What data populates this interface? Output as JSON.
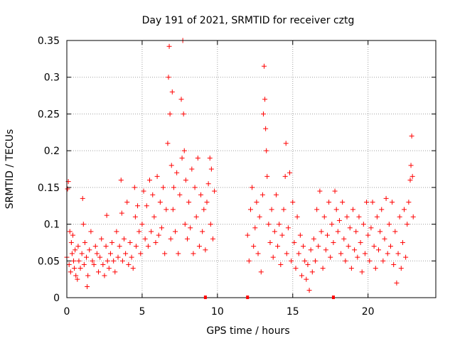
{
  "chart_data": {
    "type": "scatter",
    "title": "Day 191 of 2021, SRMTID for receiver cztg",
    "xlabel": "GPS time / hours",
    "ylabel": "SRMTID / TECUs",
    "xlim": [
      0,
      24.5
    ],
    "ylim": [
      0,
      0.35
    ],
    "grid": true,
    "marker": "+",
    "marker_color": "#ff0000",
    "x_ticks": [
      {
        "value": 0,
        "label": "0"
      },
      {
        "value": 5,
        "label": "5"
      },
      {
        "value": 10,
        "label": "10"
      },
      {
        "value": 15,
        "label": "15"
      },
      {
        "value": 20,
        "label": "20"
      }
    ],
    "y_ticks": [
      {
        "value": 0,
        "label": "0"
      },
      {
        "value": 0.05,
        "label": "0.05"
      },
      {
        "value": 0.1,
        "label": "0.1"
      },
      {
        "value": 0.15,
        "label": "0.15"
      },
      {
        "value": 0.2,
        "label": "0.2"
      },
      {
        "value": 0.25,
        "label": "0.25"
      },
      {
        "value": 0.3,
        "label": "0.3"
      },
      {
        "value": 0.35,
        "label": "0.35"
      }
    ],
    "gap_markers_x": [
      9.2,
      12.0,
      17.7
    ],
    "series": [
      {
        "name": "SRMTID",
        "points": [
          [
            0.0,
            0.055
          ],
          [
            0.05,
            0.148
          ],
          [
            0.1,
            0.158
          ],
          [
            0.15,
            0.045
          ],
          [
            0.2,
            0.09
          ],
          [
            0.25,
            0.035
          ],
          [
            0.3,
            0.075
          ],
          [
            0.35,
            0.06
          ],
          [
            0.4,
            0.085
          ],
          [
            0.45,
            0.05
          ],
          [
            0.5,
            0.04
          ],
          [
            0.55,
            0.065
          ],
          [
            0.6,
            0.03
          ],
          [
            0.7,
            0.025
          ],
          [
            0.75,
            0.07
          ],
          [
            0.8,
            0.05
          ],
          [
            0.9,
            0.04
          ],
          [
            1.0,
            0.06
          ],
          [
            1.05,
            0.135
          ],
          [
            1.1,
            0.1
          ],
          [
            1.15,
            0.045
          ],
          [
            1.2,
            0.075
          ],
          [
            1.3,
            0.055
          ],
          [
            1.35,
            0.015
          ],
          [
            1.4,
            0.03
          ],
          [
            1.5,
            0.065
          ],
          [
            1.6,
            0.09
          ],
          [
            1.7,
            0.05
          ],
          [
            1.8,
            0.045
          ],
          [
            1.9,
            0.07
          ],
          [
            2.0,
            0.06
          ],
          [
            2.1,
            0.035
          ],
          [
            2.2,
            0.055
          ],
          [
            2.3,
            0.08
          ],
          [
            2.4,
            0.045
          ],
          [
            2.5,
            0.03
          ],
          [
            2.6,
            0.07
          ],
          [
            2.65,
            0.112
          ],
          [
            2.7,
            0.05
          ],
          [
            2.8,
            0.04
          ],
          [
            2.9,
            0.06
          ],
          [
            3.0,
            0.075
          ],
          [
            3.1,
            0.05
          ],
          [
            3.2,
            0.035
          ],
          [
            3.3,
            0.09
          ],
          [
            3.4,
            0.055
          ],
          [
            3.5,
            0.07
          ],
          [
            3.6,
            0.16
          ],
          [
            3.65,
            0.115
          ],
          [
            3.7,
            0.05
          ],
          [
            3.8,
            0.08
          ],
          [
            3.9,
            0.06
          ],
          [
            4.0,
            0.13
          ],
          [
            4.1,
            0.045
          ],
          [
            4.2,
            0.075
          ],
          [
            4.3,
            0.055
          ],
          [
            4.4,
            0.04
          ],
          [
            4.5,
            0.15
          ],
          [
            4.55,
            0.11
          ],
          [
            4.6,
            0.07
          ],
          [
            4.7,
            0.125
          ],
          [
            4.8,
            0.09
          ],
          [
            4.9,
            0.06
          ],
          [
            5.0,
            0.1
          ],
          [
            5.1,
            0.145
          ],
          [
            5.2,
            0.08
          ],
          [
            5.3,
            0.125
          ],
          [
            5.4,
            0.07
          ],
          [
            5.5,
            0.16
          ],
          [
            5.6,
            0.09
          ],
          [
            5.7,
            0.14
          ],
          [
            5.8,
            0.11
          ],
          [
            5.9,
            0.075
          ],
          [
            6.0,
            0.165
          ],
          [
            6.1,
            0.085
          ],
          [
            6.2,
            0.13
          ],
          [
            6.3,
            0.095
          ],
          [
            6.4,
            0.15
          ],
          [
            6.5,
            0.06
          ],
          [
            6.6,
            0.12
          ],
          [
            6.7,
            0.21
          ],
          [
            6.75,
            0.3
          ],
          [
            6.8,
            0.342
          ],
          [
            6.85,
            0.25
          ],
          [
            6.9,
            0.08
          ],
          [
            6.95,
            0.18
          ],
          [
            7.0,
            0.28
          ],
          [
            7.05,
            0.12
          ],
          [
            7.1,
            0.15
          ],
          [
            7.2,
            0.09
          ],
          [
            7.3,
            0.17
          ],
          [
            7.4,
            0.06
          ],
          [
            7.5,
            0.14
          ],
          [
            7.6,
            0.27
          ],
          [
            7.65,
            0.19
          ],
          [
            7.7,
            0.35
          ],
          [
            7.75,
            0.25
          ],
          [
            7.8,
            0.2
          ],
          [
            7.85,
            0.1
          ],
          [
            7.9,
            0.16
          ],
          [
            8.0,
            0.08
          ],
          [
            8.1,
            0.13
          ],
          [
            8.2,
            0.095
          ],
          [
            8.3,
            0.175
          ],
          [
            8.4,
            0.06
          ],
          [
            8.5,
            0.15
          ],
          [
            8.6,
            0.11
          ],
          [
            8.7,
            0.19
          ],
          [
            8.8,
            0.07
          ],
          [
            8.9,
            0.14
          ],
          [
            9.0,
            0.09
          ],
          [
            9.1,
            0.12
          ],
          [
            9.2,
            0.065
          ],
          [
            9.3,
            0.13
          ],
          [
            9.4,
            0.155
          ],
          [
            9.5,
            0.19
          ],
          [
            9.55,
            0.1
          ],
          [
            9.6,
            0.175
          ],
          [
            9.7,
            0.08
          ],
          [
            9.8,
            0.145
          ],
          [
            12.0,
            0.085
          ],
          [
            12.1,
            0.05
          ],
          [
            12.2,
            0.12
          ],
          [
            12.3,
            0.15
          ],
          [
            12.4,
            0.07
          ],
          [
            12.5,
            0.095
          ],
          [
            12.6,
            0.13
          ],
          [
            12.7,
            0.06
          ],
          [
            12.8,
            0.11
          ],
          [
            12.9,
            0.035
          ],
          [
            13.0,
            0.14
          ],
          [
            13.05,
            0.25
          ],
          [
            13.1,
            0.315
          ],
          [
            13.15,
            0.27
          ],
          [
            13.2,
            0.23
          ],
          [
            13.25,
            0.2
          ],
          [
            13.3,
            0.165
          ],
          [
            13.4,
            0.1
          ],
          [
            13.5,
            0.075
          ],
          [
            13.6,
            0.12
          ],
          [
            13.7,
            0.055
          ],
          [
            13.8,
            0.09
          ],
          [
            13.9,
            0.14
          ],
          [
            14.0,
            0.07
          ],
          [
            14.1,
            0.1
          ],
          [
            14.2,
            0.045
          ],
          [
            14.3,
            0.085
          ],
          [
            14.4,
            0.12
          ],
          [
            14.5,
            0.165
          ],
          [
            14.55,
            0.21
          ],
          [
            14.6,
            0.06
          ],
          [
            14.7,
            0.095
          ],
          [
            14.8,
            0.17
          ],
          [
            14.9,
            0.05
          ],
          [
            15.0,
            0.13
          ],
          [
            15.1,
            0.075
          ],
          [
            15.2,
            0.04
          ],
          [
            15.3,
            0.11
          ],
          [
            15.4,
            0.06
          ],
          [
            15.5,
            0.085
          ],
          [
            15.6,
            0.03
          ],
          [
            15.7,
            0.07
          ],
          [
            15.8,
            0.05
          ],
          [
            15.9,
            0.025
          ],
          [
            16.0,
            0.045
          ],
          [
            16.1,
            0.01
          ],
          [
            16.2,
            0.065
          ],
          [
            16.3,
            0.035
          ],
          [
            16.4,
            0.08
          ],
          [
            16.5,
            0.05
          ],
          [
            16.6,
            0.12
          ],
          [
            16.7,
            0.07
          ],
          [
            16.8,
            0.145
          ],
          [
            16.9,
            0.09
          ],
          [
            17.0,
            0.04
          ],
          [
            17.1,
            0.11
          ],
          [
            17.2,
            0.065
          ],
          [
            17.3,
            0.085
          ],
          [
            17.4,
            0.13
          ],
          [
            17.5,
            0.055
          ],
          [
            17.6,
            0.1
          ],
          [
            17.7,
            0.075
          ],
          [
            17.8,
            0.145
          ],
          [
            17.9,
            0.12
          ],
          [
            18.0,
            0.09
          ],
          [
            18.1,
            0.105
          ],
          [
            18.2,
            0.06
          ],
          [
            18.3,
            0.13
          ],
          [
            18.4,
            0.08
          ],
          [
            18.5,
            0.05
          ],
          [
            18.6,
            0.11
          ],
          [
            18.7,
            0.07
          ],
          [
            18.8,
            0.095
          ],
          [
            18.9,
            0.04
          ],
          [
            19.0,
            0.12
          ],
          [
            19.1,
            0.065
          ],
          [
            19.2,
            0.09
          ],
          [
            19.3,
            0.055
          ],
          [
            19.4,
            0.11
          ],
          [
            19.5,
            0.075
          ],
          [
            19.6,
            0.035
          ],
          [
            19.7,
            0.1
          ],
          [
            19.8,
            0.06
          ],
          [
            19.9,
            0.13
          ],
          [
            20.0,
            0.085
          ],
          [
            20.1,
            0.05
          ],
          [
            20.2,
            0.095
          ],
          [
            20.3,
            0.13
          ],
          [
            20.4,
            0.07
          ],
          [
            20.5,
            0.04
          ],
          [
            20.6,
            0.11
          ],
          [
            20.7,
            0.065
          ],
          [
            20.8,
            0.09
          ],
          [
            20.9,
            0.12
          ],
          [
            21.0,
            0.05
          ],
          [
            21.1,
            0.08
          ],
          [
            21.2,
            0.135
          ],
          [
            21.3,
            0.06
          ],
          [
            21.4,
            0.1
          ],
          [
            21.5,
            0.07
          ],
          [
            21.6,
            0.13
          ],
          [
            21.7,
            0.045
          ],
          [
            21.8,
            0.09
          ],
          [
            21.9,
            0.02
          ],
          [
            22.0,
            0.06
          ],
          [
            22.1,
            0.11
          ],
          [
            22.2,
            0.04
          ],
          [
            22.3,
            0.075
          ],
          [
            22.4,
            0.12
          ],
          [
            22.5,
            0.055
          ],
          [
            22.6,
            0.1
          ],
          [
            22.7,
            0.13
          ],
          [
            22.8,
            0.16
          ],
          [
            22.85,
            0.18
          ],
          [
            22.9,
            0.22
          ],
          [
            22.95,
            0.165
          ],
          [
            23.0,
            0.11
          ]
        ]
      }
    ]
  }
}
